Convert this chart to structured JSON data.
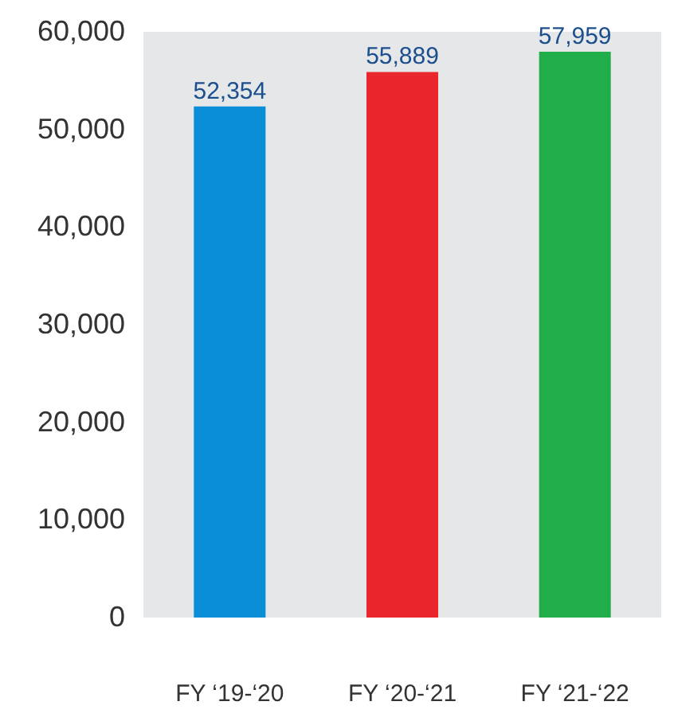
{
  "chart_data": {
    "type": "bar",
    "categories": [
      "FY ‘19-‘20",
      "FY ‘20-‘21",
      "FY ‘21-‘22"
    ],
    "values": [
      52354,
      55889,
      57959
    ],
    "value_labels": [
      "52,354",
      "55,889",
      "57,959"
    ],
    "colors": [
      "#0a8ed8",
      "#e8262b",
      "#22ad4b"
    ],
    "ylim": [
      0,
      60000
    ],
    "yticks": [
      0,
      {
        "value": 10000,
        "label": "10,000"
      },
      {
        "value": 20000,
        "label": "20,000"
      },
      {
        "value": 30000,
        "label": "30,000"
      },
      {
        "value": 40000,
        "label": "40,000"
      },
      {
        "value": 50000,
        "label": "50,000"
      },
      {
        "value": 60000,
        "label": "60,000"
      }
    ]
  }
}
